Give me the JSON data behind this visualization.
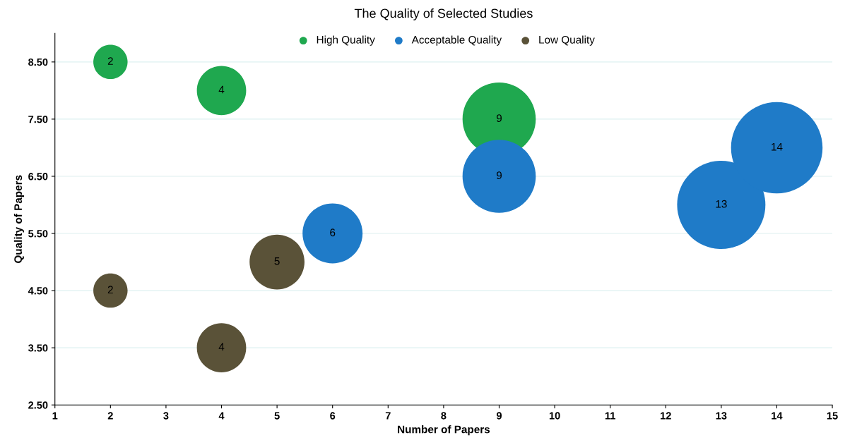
{
  "chart_data": {
    "type": "bubble",
    "title": "The Quality of Selected Studies",
    "xlabel": "Number of Papers",
    "ylabel": "Quality of Papers",
    "xlim": [
      1,
      15
    ],
    "xticks": [
      1,
      2,
      3,
      4,
      5,
      6,
      7,
      8,
      9,
      10,
      11,
      12,
      13,
      14,
      15
    ],
    "ylim": [
      2.5,
      9
    ],
    "yticks": [
      {
        "value": 2.5,
        "label": "2.50"
      },
      {
        "value": 3.5,
        "label": "3.50"
      },
      {
        "value": 4.5,
        "label": "4.50"
      },
      {
        "value": 5.5,
        "label": "5.50"
      },
      {
        "value": 6.5,
        "label": "6.50"
      },
      {
        "value": 7.5,
        "label": "7.50"
      },
      {
        "value": 8.5,
        "label": "8.50"
      }
    ],
    "grid": "y",
    "legend": "top",
    "series": [
      {
        "name": "High Quality",
        "color": "#1fa84f",
        "x": [
          2,
          4,
          9
        ],
        "values": [
          8.5,
          8,
          7.5
        ],
        "sizes": [
          0.14,
          0.29,
          0.64
        ]
      },
      {
        "name": "Acceptable Quality",
        "color": "#1f7bc8",
        "x": [
          6,
          9,
          13,
          14
        ],
        "values": [
          5.5,
          6.5,
          6,
          7
        ],
        "sizes": [
          0.43,
          0.64,
          0.93,
          1
        ]
      },
      {
        "name": "Low Quality",
        "color": "#5a5238",
        "x": [
          2,
          4,
          5
        ],
        "values": [
          4.5,
          3.5,
          5
        ],
        "sizes": [
          0.14,
          0.29,
          0.36
        ]
      }
    ],
    "annotations": [
      {
        "text": "2",
        "x": 2,
        "y": 8.5
      },
      {
        "text": "4",
        "x": 4,
        "y": 8
      },
      {
        "text": "9",
        "x": 9,
        "y": 7.5
      },
      {
        "text": "6",
        "x": 6,
        "y": 5.5
      },
      {
        "text": "9",
        "x": 9,
        "y": 6.5
      },
      {
        "text": "13",
        "x": 13,
        "y": 6
      },
      {
        "text": "14",
        "x": 14,
        "y": 7
      },
      {
        "text": "2",
        "x": 2,
        "y": 4.5
      },
      {
        "text": "4",
        "x": 4,
        "y": 3.5
      },
      {
        "text": "5",
        "x": 5,
        "y": 5
      }
    ]
  }
}
